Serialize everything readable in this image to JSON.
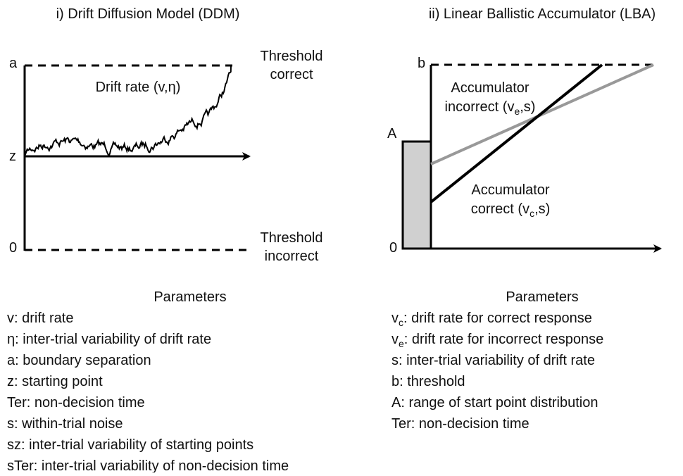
{
  "ddm": {
    "title": "i) Drift Diffusion Model (DDM)",
    "axis_labels": {
      "a": "a",
      "z": "z",
      "zero": "0"
    },
    "threshold_correct": [
      "Threshold",
      "correct"
    ],
    "threshold_incorrect": [
      "Threshold",
      "incorrect"
    ],
    "drift_label": "Drift rate (v,η)",
    "parameters_title": "Parameters",
    "parameters": [
      "v: drift rate",
      "η: inter-trial variability of drift rate",
      "a: boundary separation",
      "z: starting point",
      "Ter: non-decision time",
      "s: within-trial noise",
      "sz: inter-trial variability of starting points",
      "sTer: inter-trial variability of non-decision time"
    ]
  },
  "lba": {
    "title": "ii) Linear Ballistic Accumulator (LBA)",
    "axis_labels": {
      "b": "b",
      "A": "A",
      "zero": "0"
    },
    "accumulator_incorrect": {
      "line1": "Accumulator",
      "pre": "incorrect (v",
      "sub": "e",
      "post": ",s)"
    },
    "accumulator_correct": {
      "line1": "Accumulator",
      "pre": "correct (v",
      "sub": "c",
      "post": ",s)"
    },
    "parameters_title": "Parameters",
    "parameters": [
      {
        "symbol": "v",
        "sub": "c",
        "text": ": drift rate for correct response"
      },
      {
        "symbol": "v",
        "sub": "e",
        "text": ": drift rate for incorrect response"
      },
      {
        "symbol": "s: inter-trial variability of drift rate"
      },
      {
        "symbol": "b: threshold"
      },
      {
        "symbol": "A: range of start point distribution"
      },
      {
        "symbol": "Ter: non-decision time"
      }
    ]
  }
}
